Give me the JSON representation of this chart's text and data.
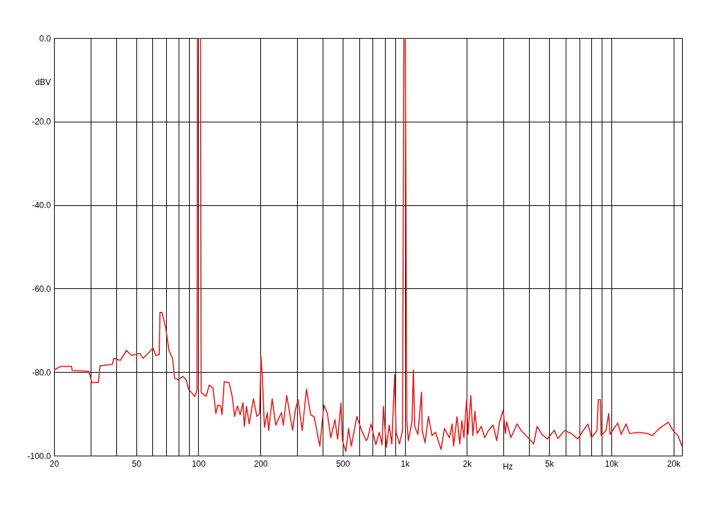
{
  "chart_data": {
    "type": "line",
    "xlabel": "Hz",
    "ylabel": "dBV",
    "log": "x",
    "grid": true,
    "xlim": [
      20,
      22000
    ],
    "ylim": [
      -100,
      0
    ],
    "xticks": [
      20,
      {
        "value": 30,
        "label": null
      },
      {
        "value": 40,
        "label": null
      },
      50,
      {
        "value": 60,
        "label": null
      },
      {
        "value": 70,
        "label": null
      },
      {
        "value": 80,
        "label": null
      },
      {
        "value": 90,
        "label": null
      },
      100,
      200,
      {
        "value": 300,
        "label": null
      },
      {
        "value": 400,
        "label": null
      },
      500,
      {
        "value": 600,
        "label": null
      },
      {
        "value": 700,
        "label": null
      },
      {
        "value": 800,
        "label": null
      },
      {
        "value": 900,
        "label": null
      },
      {
        "value": 1000,
        "label": "1k"
      },
      {
        "value": 2000,
        "label": "2k"
      },
      {
        "value": 3000,
        "label": null
      },
      {
        "value": 4000,
        "label": null
      },
      {
        "value": 5000,
        "label": "5k"
      },
      {
        "value": 6000,
        "label": null
      },
      {
        "value": 7000,
        "label": null
      },
      {
        "value": 8000,
        "label": null
      },
      {
        "value": 9000,
        "label": null
      },
      {
        "value": 10000,
        "label": "10k"
      },
      {
        "value": 20000,
        "label": "20k"
      }
    ],
    "yticks": [
      {
        "value": 0,
        "label": "0.0"
      },
      {
        "value": -20,
        "label": "-20.0"
      },
      {
        "value": -40,
        "label": "-40.0"
      },
      {
        "value": -60,
        "label": "-60.0"
      },
      {
        "value": -80,
        "label": "-80.0"
      },
      {
        "value": -100,
        "label": "-100.0"
      }
    ],
    "series": [
      {
        "color": "#e31b1b",
        "x": [
          20,
          21.6,
          24.3,
          24.5,
          29.5,
          30.5,
          32.8,
          33.4,
          38.4,
          39,
          41.9,
          44.9,
          47.4,
          52,
          54.1,
          57.1,
          60.3,
          62.2,
          64.7,
          65.2,
          66.7,
          69.4,
          72.1,
          75,
          76.8,
          79.8,
          84.3,
          87.6,
          89.7,
          96.2,
          98.5,
          99.2,
          102.4,
          103.2,
          109,
          113,
          117.7,
          119.6,
          121.5,
          124.3,
          128.3,
          130.3,
          133.4,
          140.8,
          146.3,
          149.8,
          154.6,
          159.5,
          164.5,
          167,
          171,
          176.4,
          184.9,
          192.2,
          198.1,
          201.2,
          204.3,
          209,
          215.9,
          219,
          228,
          237,
          252.5,
          258,
          268,
          286,
          295,
          304,
          318.5,
          334,
          350,
          364,
          387.6,
          405.7,
          421.6,
          438,
          458.6,
          472.8,
          491,
          498.7,
          518,
          534,
          550.5,
          586,
          618,
          650,
          660,
          686,
          724,
          752,
          776,
          788,
          800,
          815,
          840,
          865,
          893,
          907,
          942,
          975,
          990,
          1005,
          1023,
          1040,
          1083,
          1100,
          1117,
          1157,
          1205,
          1214,
          1253,
          1302,
          1355,
          1408,
          1498,
          1557,
          1644,
          1696,
          1723,
          1789,
          1846,
          1890,
          1933,
          1993,
          2024,
          2088,
          2136,
          2186,
          2240,
          2346,
          2438,
          2537,
          2680,
          2787,
          2877,
          2996,
          3067,
          3115,
          3264,
          3499,
          3660,
          3955,
          4206,
          4372,
          4613,
          4907,
          5297,
          5504,
          5942,
          6415,
          6875,
          7310,
          7713,
          8015,
          8523,
          8656,
          8856,
          8925,
          9420,
          9713,
          9865,
          10740,
          11165,
          11790,
          12260,
          13550,
          14980,
          15810,
          17070,
          18880,
          19930,
          21040,
          22000
        ],
        "values": [
          -79.5,
          -78.6,
          -78.6,
          -79.6,
          -79.8,
          -82.5,
          -82.5,
          -78.5,
          -78.1,
          -76.7,
          -77.2,
          -74.8,
          -76,
          -75.5,
          -76.7,
          -75.5,
          -74.2,
          -76,
          -75.8,
          -65.7,
          -65.7,
          -69.2,
          -74.8,
          -76.7,
          -81.5,
          -81.8,
          -81,
          -82,
          -84.1,
          -85.8,
          -84.4,
          0,
          0,
          -84.9,
          -85.8,
          -83.1,
          -83.8,
          -86.6,
          -89.9,
          -87.9,
          -88.1,
          -90.2,
          -82.3,
          -82.5,
          -86.1,
          -90.6,
          -88.1,
          -90.2,
          -87.3,
          -93,
          -88.2,
          -92.4,
          -86.4,
          -90.6,
          -89.9,
          -76.2,
          -81.5,
          -93.2,
          -89.7,
          -94,
          -86.4,
          -92.7,
          -89.7,
          -92.7,
          -85.6,
          -93.9,
          -89.1,
          -86.6,
          -94,
          -84.1,
          -90.2,
          -90.7,
          -97.7,
          -87.9,
          -89.9,
          -95.7,
          -91.4,
          -96,
          -87.4,
          -96.4,
          -99,
          -93.5,
          -97.7,
          -90.6,
          -94,
          -96.4,
          -96,
          -92.4,
          -97.4,
          -94.4,
          -97.4,
          -88.2,
          -93,
          -98,
          -92.7,
          -97.2,
          -80.6,
          -94.4,
          -97.2,
          -94,
          0,
          0,
          -92,
          -96.4,
          -91.9,
          -79.5,
          -93,
          -94.9,
          -84.8,
          -94,
          -96.9,
          -90.6,
          -95.2,
          -94.4,
          -98.5,
          -93.5,
          -95.7,
          -92.4,
          -97.7,
          -90.7,
          -97.2,
          -91.6,
          -95.7,
          -86.6,
          -94.9,
          -85.6,
          -95.2,
          -89.4,
          -94.7,
          -93,
          -95.7,
          -94,
          -92.7,
          -96.4,
          -91.9,
          -89.1,
          -94.7,
          -91.9,
          -95.7,
          -92.4,
          -94,
          -95.7,
          -97.2,
          -93,
          -94.9,
          -96,
          -93.9,
          -95.9,
          -94,
          -94.7,
          -96,
          -94,
          -92.4,
          -95.7,
          -94,
          -86.6,
          -86.6,
          -95.2,
          -94,
          -89.9,
          -94.9,
          -92.2,
          -94.9,
          -92.4,
          -94.7,
          -94.4,
          -94.7,
          -95.2,
          -93.5,
          -92,
          -94,
          -95.2,
          -97.7
        ]
      }
    ]
  }
}
